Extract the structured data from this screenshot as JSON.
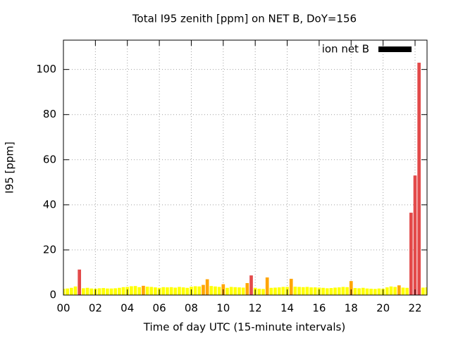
{
  "chart_data": {
    "type": "bar",
    "title": "Total I95 zenith [ppm] on NET B, DoY=156",
    "xlabel": "Time of day UTC (15-minute intervals)",
    "ylabel": "I95 [ppm]",
    "x": [
      0,
      0.25,
      0.5,
      0.75,
      1,
      1.25,
      1.5,
      1.75,
      2,
      2.25,
      2.5,
      2.75,
      3,
      3.25,
      3.5,
      3.75,
      4,
      4.25,
      4.5,
      4.75,
      5,
      5.25,
      5.5,
      5.75,
      6,
      6.25,
      6.5,
      6.75,
      7,
      7.25,
      7.5,
      7.75,
      8,
      8.25,
      8.5,
      8.75,
      9,
      9.25,
      9.5,
      9.75,
      10,
      10.25,
      10.5,
      10.75,
      11,
      11.25,
      11.5,
      11.75,
      12,
      12.25,
      12.5,
      12.75,
      13,
      13.25,
      13.5,
      13.75,
      14,
      14.25,
      14.5,
      14.75,
      15,
      15.25,
      15.5,
      15.75,
      16,
      16.25,
      16.5,
      16.75,
      17,
      17.25,
      17.5,
      17.75,
      18,
      18.25,
      18.5,
      18.75,
      19,
      19.25,
      19.5,
      19.75,
      20,
      20.25,
      20.5,
      20.75,
      21,
      21.25,
      21.5,
      21.75,
      22,
      22.25,
      22.5,
      22.75
    ],
    "series": [
      {
        "name": "ion net B",
        "color": "#000000",
        "values": [
          2.8,
          2.9,
          3.2,
          3.8,
          11.3,
          3.0,
          3.2,
          2.9,
          2.8,
          3.0,
          3.1,
          2.9,
          2.9,
          3.0,
          3.2,
          3.5,
          3.6,
          3.9,
          4.0,
          3.5,
          4.1,
          3.7,
          3.6,
          3.4,
          3.2,
          3.5,
          3.4,
          3.5,
          3.3,
          3.6,
          3.4,
          3.2,
          3.7,
          3.9,
          3.8,
          4.5,
          7.0,
          4.0,
          3.8,
          3.6,
          4.8,
          3.2,
          3.6,
          3.5,
          3.4,
          3.3,
          5.3,
          8.7,
          3.2,
          2.8,
          2.7,
          7.8,
          3.2,
          3.3,
          3.4,
          3.6,
          3.6,
          7.2,
          3.7,
          3.6,
          3.5,
          3.6,
          3.4,
          3.4,
          3.3,
          3.2,
          3.0,
          3.1,
          3.3,
          3.4,
          3.6,
          3.5,
          6.2,
          3.1,
          3.0,
          3.2,
          2.9,
          2.8,
          2.7,
          2.9,
          2.8,
          3.4,
          3.8,
          3.6,
          4.3,
          3.3,
          3.2,
          36.5,
          53,
          103,
          3.3,
          3.4
        ],
        "bar_colors": [
          "#ffff00",
          "#ffff00",
          "#ffff00",
          "#ffff00",
          "#e34a4a",
          "#ffff00",
          "#ffff00",
          "#ffff00",
          "#ffff00",
          "#ffff00",
          "#ffff00",
          "#ffff00",
          "#ffff00",
          "#ffff00",
          "#ffff00",
          "#ffff00",
          "#ffff00",
          "#ffff00",
          "#ffff00",
          "#ffff00",
          "#ffa500",
          "#ffff00",
          "#ffff00",
          "#ffff00",
          "#ffff00",
          "#ffff00",
          "#ffff00",
          "#ffff00",
          "#ffff00",
          "#ffff00",
          "#ffff00",
          "#ffff00",
          "#ffff00",
          "#ffff00",
          "#ffff00",
          "#ffa500",
          "#ffa500",
          "#ffff00",
          "#ffff00",
          "#ffff00",
          "#ffa500",
          "#ffff00",
          "#ffff00",
          "#ffff00",
          "#ffff00",
          "#ffff00",
          "#ffa500",
          "#e34a4a",
          "#ffff00",
          "#ffff00",
          "#ffff00",
          "#ffa500",
          "#ffff00",
          "#ffff00",
          "#ffff00",
          "#ffff00",
          "#ffff00",
          "#ffa500",
          "#ffff00",
          "#ffff00",
          "#ffff00",
          "#ffff00",
          "#ffff00",
          "#ffff00",
          "#ffff00",
          "#ffff00",
          "#ffff00",
          "#ffff00",
          "#ffff00",
          "#ffff00",
          "#ffff00",
          "#ffff00",
          "#ffa500",
          "#ffff00",
          "#ffff00",
          "#ffff00",
          "#ffff00",
          "#ffff00",
          "#ffff00",
          "#ffff00",
          "#ffff00",
          "#ffff00",
          "#ffff00",
          "#ffff00",
          "#ffa500",
          "#ffff00",
          "#ffff00",
          "#e34a4a",
          "#e34a4a",
          "#e34a4a",
          "#ffff00",
          "#ffff00"
        ]
      }
    ],
    "bar_width": 0.25,
    "xlim": [
      0,
      22.75
    ],
    "xticks": [
      {
        "value": 0,
        "label": "00"
      },
      {
        "value": 2,
        "label": "02"
      },
      {
        "value": 4,
        "label": "04"
      },
      {
        "value": 6,
        "label": "06"
      },
      {
        "value": 8,
        "label": "08"
      },
      {
        "value": 10,
        "label": "10"
      },
      {
        "value": 12,
        "label": "12"
      },
      {
        "value": 14,
        "label": "14"
      },
      {
        "value": 16,
        "label": "16"
      },
      {
        "value": 18,
        "label": "18"
      },
      {
        "value": 20,
        "label": "20"
      },
      {
        "value": 22,
        "label": "22"
      }
    ],
    "ylim": [
      0,
      113
    ],
    "yticks": [
      0,
      20,
      40,
      60,
      80,
      100
    ],
    "grid": true,
    "legend": "upper right"
  }
}
